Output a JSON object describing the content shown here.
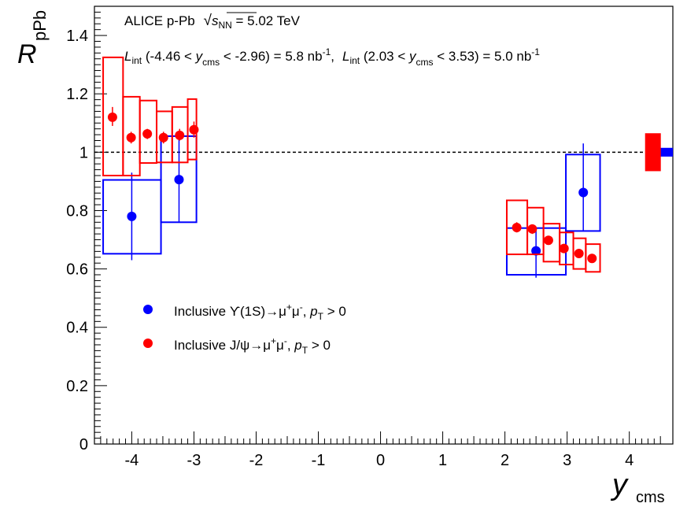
{
  "chart_data": {
    "type": "scatter",
    "title": "ALICE p-Pb",
    "energy_label": "s",
    "energy_sub": "NN",
    "energy_value": " = 5.02 TeV",
    "lumi_annotation": [
      {
        "L": "L",
        "Lsub": "int",
        "range_pre": " (-4.46 < ",
        "y": "y",
        "ysub": "cms",
        "range_post": " < -2.96) = 5.8 nb",
        "exp": "-1",
        "tail": ","
      },
      {
        "L": "L",
        "Lsub": "int",
        "range_pre": " (2.03 < ",
        "y": "y",
        "ysub": "cms",
        "range_post": " < 3.53) = 5.0 nb",
        "exp": "-1",
        "tail": ""
      }
    ],
    "ylabel": "R",
    "ylabel_sub": "pPb",
    "xlabel": "y",
    "xlabel_sub": "cms",
    "xlim": [
      -4.6,
      4.7
    ],
    "ylim": [
      0,
      1.5
    ],
    "xticks": [
      -4,
      -3,
      -2,
      -1,
      0,
      1,
      2,
      3,
      4
    ],
    "yticks": [
      0,
      0.2,
      0.4,
      0.6,
      0.8,
      1,
      1.2,
      1.4
    ],
    "ytick_labels": [
      "0",
      "0.2",
      "0.4",
      "0.6",
      "0.8",
      "1",
      "1.2",
      "1.4"
    ],
    "reference_line": 1,
    "grid": false,
    "legend_position": "middle-left",
    "series": [
      {
        "name": "Inclusive Υ(1S)→μ+μ-, pT > 0",
        "legend_parts": {
          "pre": "Inclusive ϒ(1S)→μ",
          "sup1": "+",
          "mid": "μ",
          "sup2": "-",
          "sep": ", ",
          "p": "p",
          "psub": "T",
          "post": " > 0"
        },
        "color": "#0000ff",
        "points": [
          {
            "x": -4.0,
            "y": 0.78,
            "stat_lo": 0.63,
            "stat_hi": 0.93,
            "box_x": [
              -4.46,
              -3.53
            ],
            "box_y": [
              0.652,
              0.905
            ]
          },
          {
            "x": -3.24,
            "y": 0.906,
            "stat_lo": 0.76,
            "stat_hi": 1.055,
            "box_x": [
              -3.53,
              -2.96
            ],
            "box_y": [
              0.76,
              1.055
            ]
          },
          {
            "x": 2.5,
            "y": 0.662,
            "stat_lo": 0.57,
            "stat_hi": 0.74,
            "box_x": [
              2.03,
              2.98
            ],
            "box_y": [
              0.58,
              0.74
            ]
          },
          {
            "x": 3.26,
            "y": 0.862,
            "stat_lo": 0.73,
            "stat_hi": 1.03,
            "box_x": [
              2.98,
              3.53
            ],
            "box_y": [
              0.73,
              0.992
            ]
          }
        ],
        "global_uncertainty": {
          "x": 4.6,
          "lo": 0.985,
          "hi": 1.015
        }
      },
      {
        "name": "Inclusive J/ψ→μ+μ-, pT > 0",
        "legend_parts": {
          "pre": "Inclusive J/ψ→μ",
          "sup1": "+",
          "mid": "μ",
          "sup2": "-",
          "sep": ", ",
          "p": "p",
          "psub": "T",
          "post": " > 0"
        },
        "color": "#ff0000",
        "points": [
          {
            "x": -4.31,
            "y": 1.12,
            "stat_lo": 1.09,
            "stat_hi": 1.155,
            "box_x": [
              -4.46,
              -4.14
            ],
            "box_y": [
              0.92,
              1.325
            ]
          },
          {
            "x": -4.01,
            "y": 1.05,
            "stat_lo": 1.03,
            "stat_hi": 1.07,
            "box_x": [
              -4.14,
              -3.87
            ],
            "box_y": [
              0.92,
              1.19
            ]
          },
          {
            "x": -3.75,
            "y": 1.063,
            "stat_lo": 1.045,
            "stat_hi": 1.08,
            "box_x": [
              -3.87,
              -3.6
            ],
            "box_y": [
              0.963,
              1.177
            ]
          },
          {
            "x": -3.49,
            "y": 1.05,
            "stat_lo": 1.03,
            "stat_hi": 1.07,
            "box_x": [
              -3.6,
              -3.35
            ],
            "box_y": [
              0.965,
              1.14
            ]
          },
          {
            "x": -3.23,
            "y": 1.058,
            "stat_lo": 1.04,
            "stat_hi": 1.08,
            "box_x": [
              -3.35,
              -3.1
            ],
            "box_y": [
              0.965,
              1.155
            ]
          },
          {
            "x": -3.0,
            "y": 1.077,
            "stat_lo": 1.05,
            "stat_hi": 1.105,
            "box_x": [
              -3.1,
              -2.96
            ],
            "box_y": [
              0.975,
              1.182
            ]
          },
          {
            "x": 2.19,
            "y": 0.742,
            "stat_lo": 0.725,
            "stat_hi": 0.76,
            "box_x": [
              2.03,
              2.36
            ],
            "box_y": [
              0.65,
              0.835
            ]
          },
          {
            "x": 2.44,
            "y": 0.737,
            "stat_lo": 0.72,
            "stat_hi": 0.752,
            "box_x": [
              2.36,
              2.62
            ],
            "box_y": [
              0.65,
              0.81
            ]
          },
          {
            "x": 2.7,
            "y": 0.698,
            "stat_lo": 0.685,
            "stat_hi": 0.712,
            "box_x": [
              2.62,
              2.88
            ],
            "box_y": [
              0.625,
              0.755
            ]
          },
          {
            "x": 2.95,
            "y": 0.67,
            "stat_lo": 0.656,
            "stat_hi": 0.684,
            "box_x": [
              2.88,
              3.1
            ],
            "box_y": [
              0.615,
              0.725
            ]
          },
          {
            "x": 3.19,
            "y": 0.653,
            "stat_lo": 0.638,
            "stat_hi": 0.668,
            "box_x": [
              3.1,
              3.3
            ],
            "box_y": [
              0.6,
              0.705
            ]
          },
          {
            "x": 3.4,
            "y": 0.636,
            "stat_lo": 0.622,
            "stat_hi": 0.65,
            "box_x": [
              3.3,
              3.53
            ],
            "box_y": [
              0.59,
              0.685
            ]
          }
        ],
        "global_uncertainty": {
          "x": 4.38,
          "lo": 0.935,
          "hi": 1.065
        }
      }
    ]
  }
}
